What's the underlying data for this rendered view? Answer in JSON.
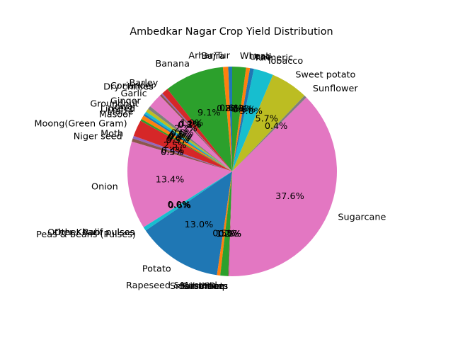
{
  "chart_data": {
    "type": "pie",
    "title": "Ambedkar Nagar Crop Yield Distribution",
    "start_angle_deg": 90,
    "counterclock": true,
    "slices": [
      {
        "label": "Arhar/Tur",
        "value": 0.6,
        "pct_label": "0.6%",
        "color": "#1f77b4"
      },
      {
        "label": "Bajra",
        "value": 0.8,
        "pct_label": "0.8%",
        "color": "#ff7f0e"
      },
      {
        "label": "Banana",
        "value": 9.1,
        "pct_label": "9.1%",
        "color": "#2ca02c"
      },
      {
        "label": "Barley",
        "value": 1.0,
        "pct_label": "1.0%",
        "color": "#d62728"
      },
      {
        "label": "Coriander",
        "value": 0.2,
        "pct_label": "0.2%",
        "color": "#9467bd"
      },
      {
        "label": "Dry chillies",
        "value": 0.3,
        "pct_label": "0.3%",
        "color": "#8c564b"
      },
      {
        "label": "Garlic",
        "value": 2.2,
        "pct_label": "2.2%",
        "color": "#e377c2"
      },
      {
        "label": "Ginger",
        "value": 0.5,
        "pct_label": "0.5%",
        "color": "#7f7f7f"
      },
      {
        "label": "Groundnut",
        "value": 0.5,
        "pct_label": "0.5%",
        "color": "#bcbd22"
      },
      {
        "label": "Jowar",
        "value": 0.4,
        "pct_label": "0.4%",
        "color": "#17becf"
      },
      {
        "label": "Linseed",
        "value": 0.3,
        "pct_label": "0.3%",
        "color": "#1f77b4"
      },
      {
        "label": "Maize",
        "value": 0.6,
        "pct_label": "0.6%",
        "color": "#ff7f0e"
      },
      {
        "label": "Masoor",
        "value": 0.3,
        "pct_label": "0.3%",
        "color": "#2ca02c"
      },
      {
        "label": "Moong(Green Gram)",
        "value": 2.5,
        "pct_label": "2.5%",
        "color": "#d62728"
      },
      {
        "label": "Moth",
        "value": 0.4,
        "pct_label": "0.4%",
        "color": "#9467bd"
      },
      {
        "label": "Niger seed",
        "value": 0.5,
        "pct_label": "0.5%",
        "color": "#8c564b"
      },
      {
        "label": "Onion",
        "value": 13.4,
        "pct_label": "13.4%",
        "color": "#e377c2"
      },
      {
        "label": "Other Kharif pulses",
        "value": 0.0,
        "pct_label": "0.0%",
        "color": "#7f7f7f"
      },
      {
        "label": "Other Rabi pulses",
        "value": 0.0,
        "pct_label": "0.0%",
        "color": "#bcbd22"
      },
      {
        "label": "Peas & beans (Pulses)",
        "value": 0.6,
        "pct_label": "0.6%",
        "color": "#17becf"
      },
      {
        "label": "Potato",
        "value": 13.0,
        "pct_label": "13.0%",
        "color": "#1f77b4"
      },
      {
        "label": "Rapeseed &Mustard",
        "value": 0.5,
        "pct_label": "0.5%",
        "color": "#ff7f0e"
      },
      {
        "label": "Rice",
        "value": 1.2,
        "pct_label": "1.2%",
        "color": "#2ca02c"
      },
      {
        "label": "Sannhamp",
        "value": 0.0,
        "pct_label": "0.0%",
        "color": "#d62728"
      },
      {
        "label": "Sesamum",
        "value": 0.0,
        "pct_label": "0.0%",
        "color": "#9467bd"
      },
      {
        "label": "Small millets",
        "value": 0.1,
        "pct_label": "0.1%",
        "color": "#8c564b"
      },
      {
        "label": "Sugarcane",
        "value": 37.6,
        "pct_label": "37.6%",
        "color": "#e377c2"
      },
      {
        "label": "Sunflower",
        "value": 0.4,
        "pct_label": "0.4%",
        "color": "#7f7f7f"
      },
      {
        "label": "Sweet potato",
        "value": 5.7,
        "pct_label": "5.7%",
        "color": "#bcbd22"
      },
      {
        "label": "Tobacco",
        "value": 3.0,
        "pct_label": "3.0%",
        "color": "#17becf"
      },
      {
        "label": "Turmeric",
        "value": 0.6,
        "pct_label": "0.6%",
        "color": "#1f77b4"
      },
      {
        "label": "Urad",
        "value": 0.6,
        "pct_label": "0.6%",
        "color": "#ff7f0e"
      },
      {
        "label": "Wheat",
        "value": 2.1,
        "pct_label": "2.1%",
        "color": "#2ca02c"
      }
    ]
  }
}
